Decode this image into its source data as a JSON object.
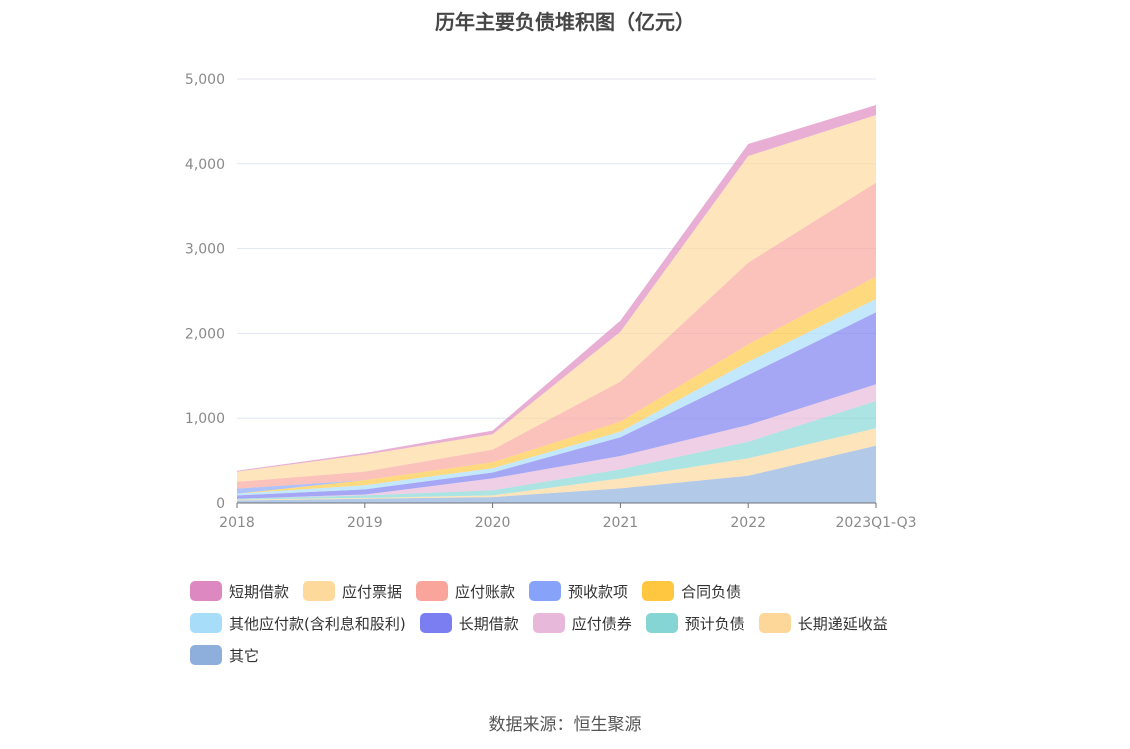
{
  "chart_data": {
    "type": "area",
    "stacked": true,
    "title": "历年主要负债堆积图（亿元）",
    "categories": [
      "2018",
      "2019",
      "2020",
      "2021",
      "2022",
      "2023Q1-Q3"
    ],
    "ylim": [
      0,
      5000
    ],
    "yticks": [
      0,
      1000,
      2000,
      3000,
      4000,
      5000
    ],
    "ytick_labels": [
      "0",
      "1,000",
      "2,000",
      "3,000",
      "4,000",
      "5,000"
    ],
    "grid": true,
    "legend_position": "bottom",
    "series": [
      {
        "name": "其它",
        "color": "#8eafdc",
        "values": [
          30,
          50,
          70,
          173,
          322,
          676
        ]
      },
      {
        "name": "长期递延收益",
        "color": "#fdd79a",
        "values": [
          10,
          10,
          20,
          118,
          205,
          205
        ]
      },
      {
        "name": "预计负债",
        "color": "#85d5d5",
        "values": [
          10,
          30,
          60,
          106,
          196,
          322
        ]
      },
      {
        "name": "应付债券",
        "color": "#e7b8d9",
        "values": [
          0,
          10,
          140,
          157,
          197,
          197
        ]
      },
      {
        "name": "长期借款",
        "color": "#7a7ef0",
        "values": [
          40,
          60,
          70,
          221,
          589,
          849
        ]
      },
      {
        "name": "其他应付款(含利息和股利)",
        "color": "#a8ddf9",
        "values": [
          20,
          50,
          50,
          66,
          157,
          157
        ]
      },
      {
        "name": "合同负债",
        "color": "#ffc740",
        "values": [
          0,
          60,
          70,
          118,
          205,
          263
        ]
      },
      {
        "name": "预收款项",
        "color": "#86a3f9",
        "values": [
          60,
          0,
          0,
          0,
          0,
          0
        ]
      },
      {
        "name": "应付账款",
        "color": "#f9a59b",
        "values": [
          80,
          100,
          150,
          472,
          963,
          1109
        ]
      },
      {
        "name": "应付票据",
        "color": "#fdd99b",
        "values": [
          120,
          200,
          180,
          589,
          1258,
          797
        ]
      },
      {
        "name": "短期借款",
        "color": "#dd88c0",
        "values": [
          10,
          20,
          43,
          130,
          141,
          118
        ]
      }
    ],
    "legend_order": [
      "短期借款",
      "应付票据",
      "应付账款",
      "预收款项",
      "合同负债",
      "其他应付款(含利息和股利)",
      "长期借款",
      "应付债券",
      "预计负债",
      "长期递延收益",
      "其它"
    ]
  },
  "source": "数据来源：恒生聚源"
}
